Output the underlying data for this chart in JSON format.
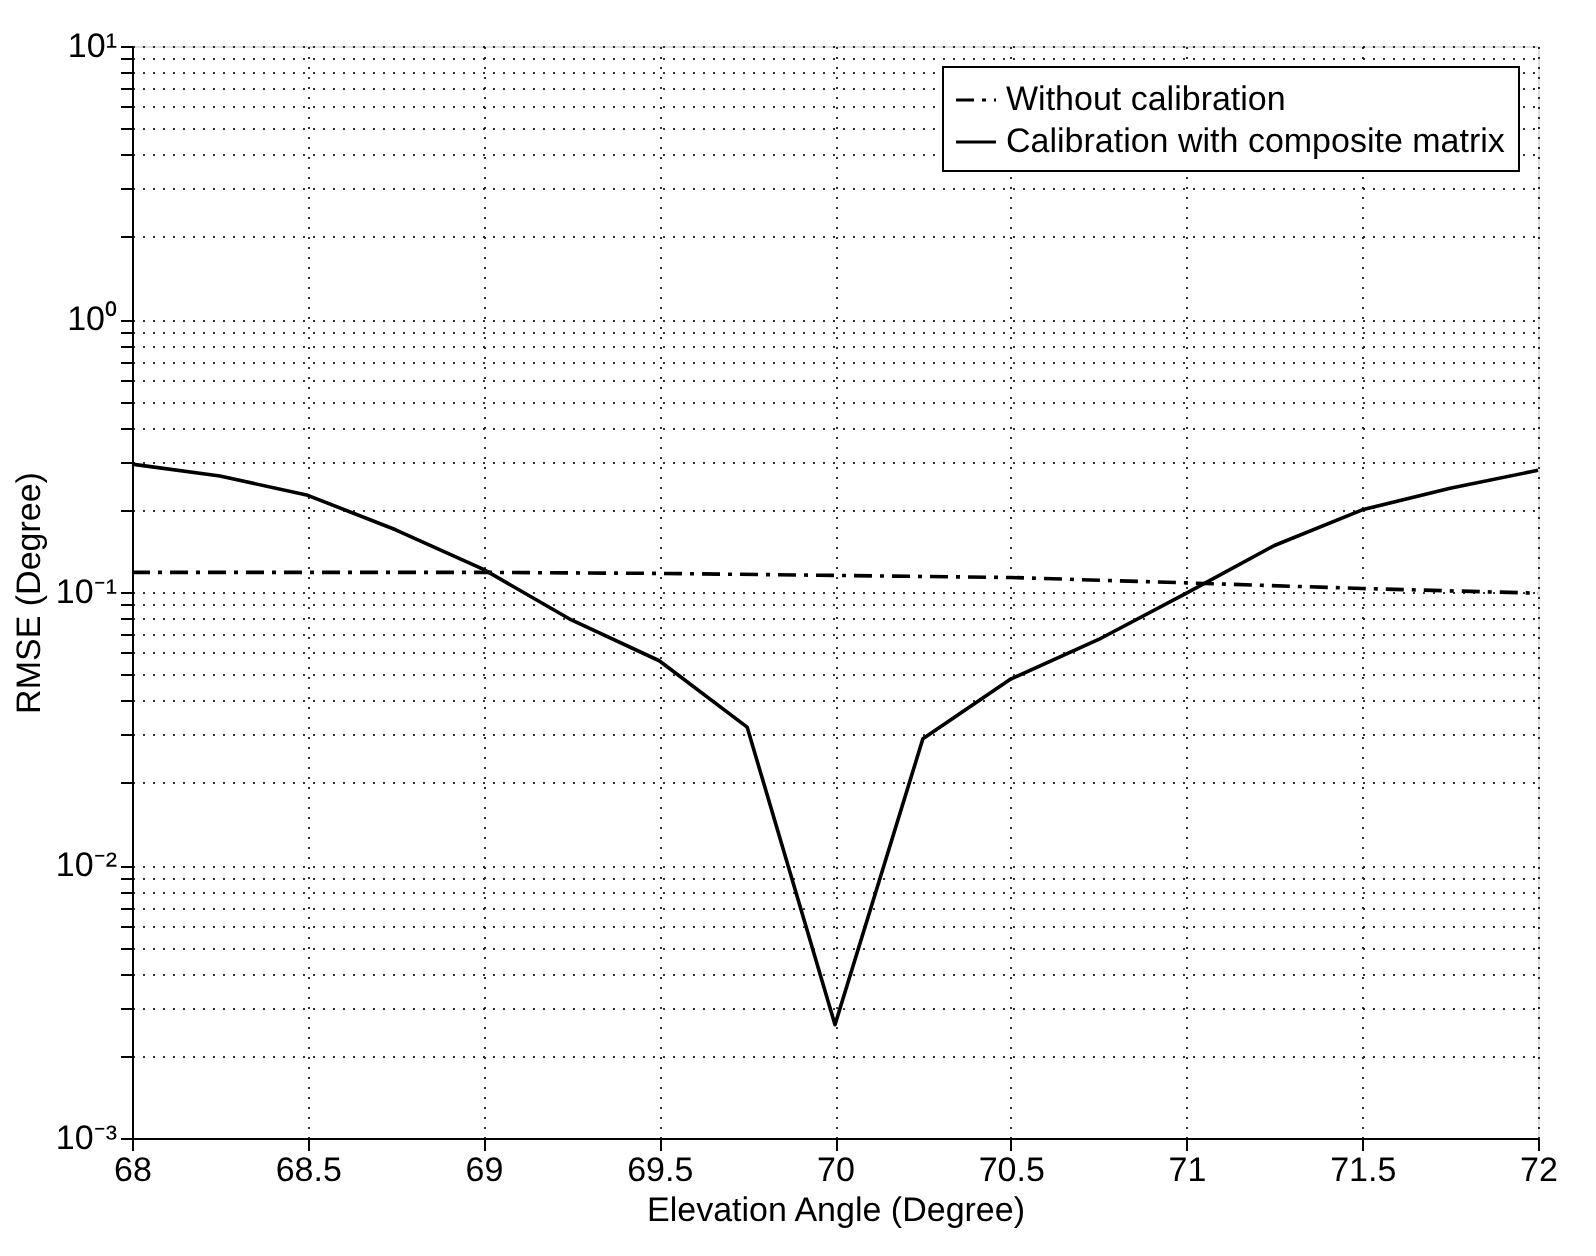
{
  "chart_data": {
    "type": "line",
    "xlabel": "Elevation Angle (Degree)",
    "ylabel": "RMSE (Degree)",
    "log": "y",
    "grid": true,
    "legend": "top right",
    "marker": "none",
    "xlim": [
      68,
      72
    ],
    "xticks": [
      68,
      68.5,
      69,
      69.5,
      70,
      70.5,
      71,
      71.5,
      72
    ],
    "ylim": [
      0.001,
      10
    ],
    "yticks": [
      {
        "value": 0.001,
        "label": "10⁻³"
      },
      {
        "value": 0.002,
        "label": null
      },
      {
        "value": 0.003,
        "label": null
      },
      {
        "value": 0.004,
        "label": null
      },
      {
        "value": 0.005,
        "label": null
      },
      {
        "value": 0.006,
        "label": null
      },
      {
        "value": 0.007,
        "label": null
      },
      {
        "value": 0.008,
        "label": null
      },
      {
        "value": 0.009,
        "label": null
      },
      {
        "value": 0.01,
        "label": "10⁻²"
      },
      {
        "value": 0.02,
        "label": null
      },
      {
        "value": 0.03,
        "label": null
      },
      {
        "value": 0.04,
        "label": null
      },
      {
        "value": 0.05,
        "label": null
      },
      {
        "value": 0.06,
        "label": null
      },
      {
        "value": 0.07,
        "label": null
      },
      {
        "value": 0.08,
        "label": null
      },
      {
        "value": 0.09,
        "label": null
      },
      {
        "value": 0.1,
        "label": "10⁻¹"
      },
      {
        "value": 0.2,
        "label": null
      },
      {
        "value": 0.3,
        "label": null
      },
      {
        "value": 0.4,
        "label": null
      },
      {
        "value": 0.5,
        "label": null
      },
      {
        "value": 0.6,
        "label": null
      },
      {
        "value": 0.7,
        "label": null
      },
      {
        "value": 0.8,
        "label": null
      },
      {
        "value": 0.9,
        "label": null
      },
      {
        "value": 1,
        "label": "10⁰"
      },
      {
        "value": 2,
        "label": null
      },
      {
        "value": 3,
        "label": null
      },
      {
        "value": 4,
        "label": null
      },
      {
        "value": 5,
        "label": null
      },
      {
        "value": 6,
        "label": null
      },
      {
        "value": 7,
        "label": null
      },
      {
        "value": 8,
        "label": null
      },
      {
        "value": 9,
        "label": null
      },
      {
        "value": 10,
        "label": "10¹"
      }
    ],
    "series": [
      {
        "name": "Without calibration",
        "color": "#000000",
        "line_style": "dashed",
        "x": [
          68,
          69,
          69.5,
          70,
          70.5,
          71,
          71.5,
          72
        ],
        "values": [
          0.118,
          0.118,
          0.117,
          0.115,
          0.113,
          0.108,
          0.103,
          0.099
        ]
      },
      {
        "name": "Calibration with composite matrix",
        "color": "#000000",
        "line_style": "solid",
        "x": [
          68,
          68.25,
          68.5,
          68.75,
          69,
          69.25,
          69.5,
          69.75,
          70,
          70.25,
          70.5,
          70.75,
          71,
          71.25,
          71.5,
          71.75,
          72
        ],
        "values": [
          0.294,
          0.266,
          0.226,
          0.169,
          0.121,
          0.079,
          0.056,
          0.032,
          0.0026,
          0.029,
          0.048,
          0.067,
          0.099,
          0.148,
          0.2,
          0.24,
          0.279
        ]
      }
    ]
  }
}
